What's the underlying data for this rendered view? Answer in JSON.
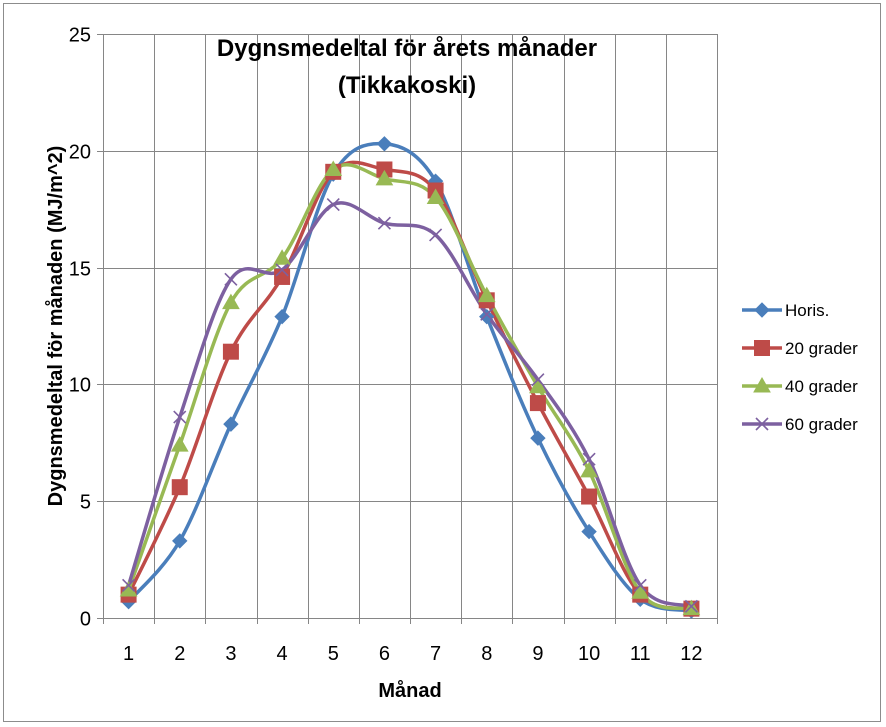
{
  "chart_data": {
    "type": "line",
    "title_lines": [
      "Dygnsmedeltal för årets månader",
      "(Tikkakoski)"
    ],
    "xlabel": "Månad",
    "ylabel": "Dygnsmedeltal för månaden (MJ/m^2)",
    "categories": [
      "1",
      "2",
      "3",
      "4",
      "5",
      "6",
      "7",
      "8",
      "9",
      "10",
      "11",
      "12"
    ],
    "y_ticks": [
      "0",
      "5",
      "10",
      "15",
      "20",
      "25"
    ],
    "ylim": [
      0,
      25
    ],
    "grid": "both",
    "legend_position": "right",
    "smoothed": true,
    "series": [
      {
        "name": "Horis.",
        "color": "#4a7ebb",
        "marker": "diamond",
        "values": [
          0.7,
          3.3,
          8.3,
          12.9,
          19.0,
          20.3,
          18.7,
          12.9,
          7.7,
          3.7,
          0.8,
          0.3
        ]
      },
      {
        "name": "20 grader",
        "color": "#be4b48",
        "marker": "square",
        "values": [
          1.0,
          5.6,
          11.4,
          14.6,
          19.1,
          19.2,
          18.3,
          13.6,
          9.2,
          5.2,
          1.0,
          0.4
        ]
      },
      {
        "name": "40 grader",
        "color": "#98b954",
        "marker": "triangle",
        "values": [
          1.2,
          7.4,
          13.5,
          15.4,
          19.2,
          18.8,
          18.0,
          13.8,
          9.9,
          6.3,
          1.1,
          0.4
        ]
      },
      {
        "name": "60 grader",
        "color": "#7d60a0",
        "marker": "x",
        "values": [
          1.4,
          8.6,
          14.5,
          14.9,
          17.7,
          16.9,
          16.4,
          13.0,
          10.2,
          6.8,
          1.4,
          0.5
        ]
      }
    ]
  }
}
